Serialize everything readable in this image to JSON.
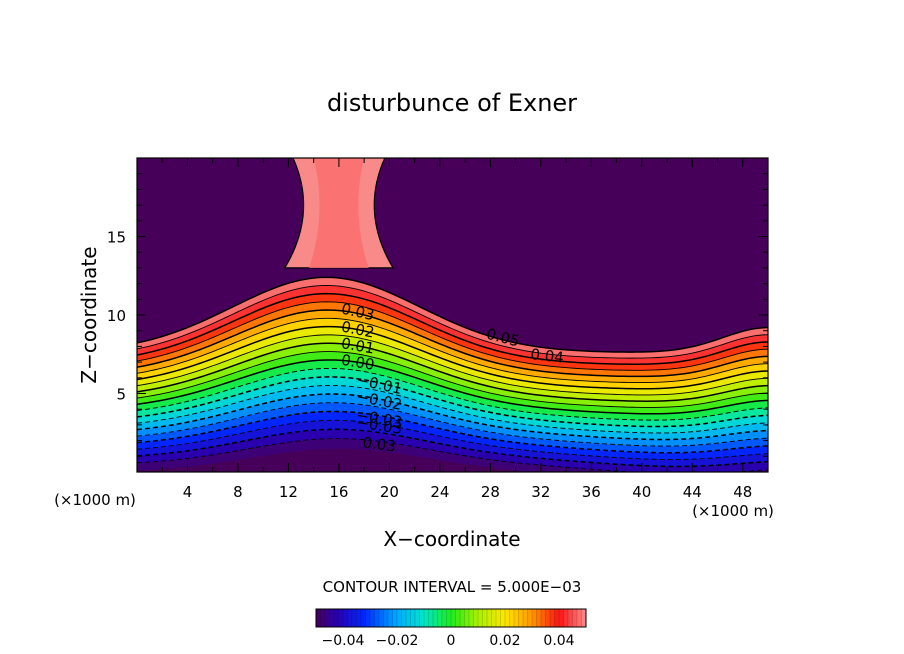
{
  "chart_data": {
    "type": "contour",
    "title": "disturbunce of Exner",
    "xlabel": "X−coordinate",
    "ylabel": "Z−coordinate",
    "x_unit": "(×1000 m)",
    "y_unit": "(×1000 m)",
    "xlim": [
      0,
      50
    ],
    "ylim": [
      0,
      20
    ],
    "x_ticks": [
      "4",
      "8",
      "12",
      "16",
      "20",
      "24",
      "28",
      "32",
      "36",
      "40",
      "44",
      "48"
    ],
    "y_ticks": [
      "5",
      "10",
      "15"
    ],
    "contour_interval_text": "CONTOUR INTERVAL = 5.000E−03",
    "contour_interval": 0.005,
    "value_range": [
      -0.05,
      0.05
    ],
    "contour_labels": [
      "0.05",
      "0.04",
      "0.03",
      "0.02",
      "0.01",
      "0.00",
      "−0.01",
      "−0.02",
      "−0.03",
      "−0.03",
      "0.03"
    ],
    "colorbar": {
      "range": [
        -0.05,
        0.05
      ],
      "tick_labels": [
        "−0.04",
        "−0.02",
        "0",
        "0.02",
        "0.04"
      ]
    }
  }
}
